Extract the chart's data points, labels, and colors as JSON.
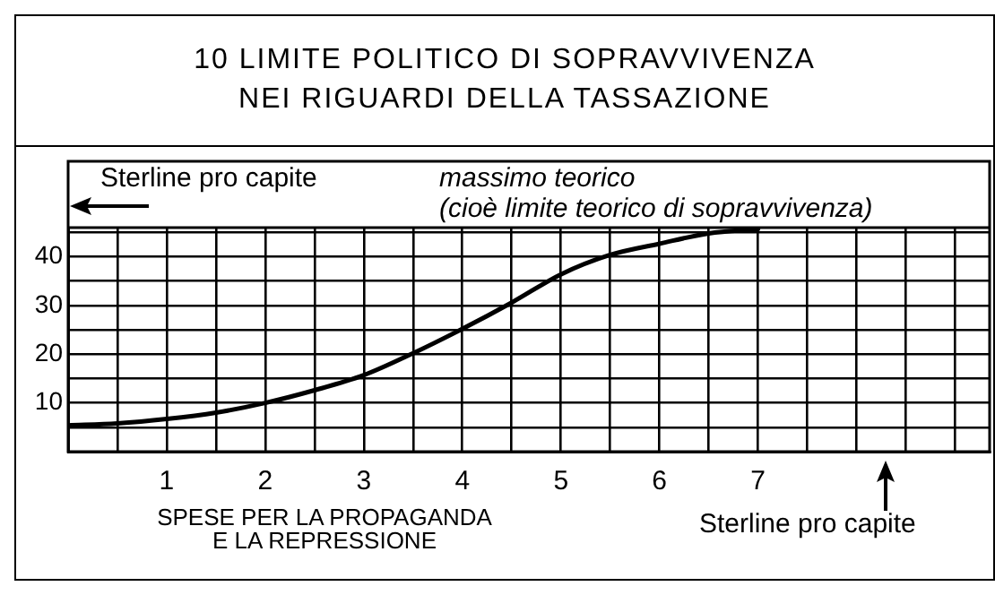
{
  "chart_data": {
    "type": "line",
    "title": "10 LIMITE POLITICO DI SOPRAVVIVENZA\nNEI RIGUARDI DELLA TASSAZIONE",
    "xlabel": "SPESE PER LA PROPAGANDA\nE LA REPRESSIONE",
    "ylabel": "Sterline pro capite",
    "annotations": [
      "massimo teorico",
      "(cioè limite teorico di sopravvivenza)",
      "Sterline pro capite"
    ],
    "x": [
      0,
      0.5,
      1,
      1.5,
      2,
      2.5,
      3,
      3.5,
      4,
      4.5,
      5,
      5.5,
      6,
      6.5,
      7
    ],
    "series": [
      {
        "color": "#000000",
        "values": [
          5.4,
          5.8,
          6.7,
          8,
          10,
          12.6,
          15.7,
          20.2,
          25.2,
          30.6,
          36.4,
          40.4,
          42.7,
          44.8,
          45.7
        ]
      }
    ],
    "xlim": [
      0,
      9.35
    ],
    "xticks": [
      {
        "value": 0.5,
        "label": null
      },
      1,
      {
        "value": 1.5,
        "label": null
      },
      2,
      {
        "value": 2.5,
        "label": null
      },
      3,
      {
        "value": 3.5,
        "label": null
      },
      4,
      {
        "value": 4.5,
        "label": null
      },
      5,
      {
        "value": 5.5,
        "label": null
      },
      6,
      {
        "value": 6.5,
        "label": null
      },
      7,
      {
        "value": 7.5,
        "label": null
      },
      {
        "value": 8,
        "label": null
      },
      {
        "value": 8.5,
        "label": null
      },
      {
        "value": 9,
        "label": null
      }
    ],
    "ylim": [
      0,
      46
    ],
    "yticks": [
      {
        "value": 5,
        "label": null
      },
      10,
      {
        "value": 15,
        "label": null
      },
      20,
      {
        "value": 25,
        "label": null
      },
      30,
      {
        "value": 35,
        "label": null
      },
      40,
      {
        "value": 45,
        "label": null
      }
    ],
    "grid": true,
    "marker": "none",
    "line_style": "solid",
    "legend": false
  }
}
